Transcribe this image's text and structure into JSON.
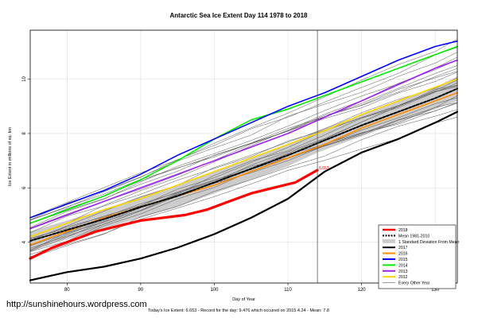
{
  "chart_data": {
    "type": "line",
    "title": "Antarctic Sea Ice Extent Day 114 1978 to 2018",
    "xlabel": "Day of Year",
    "ylabel": "Ice Extent in millions of sq. km",
    "xlim": [
      75,
      133
    ],
    "ylim": [
      2.5,
      11.8
    ],
    "xticks": [
      80,
      90,
      100,
      110,
      120,
      130
    ],
    "yticks": [
      4,
      6,
      8,
      10
    ],
    "grid": true,
    "current_day": 114,
    "current_value_label": "6.653",
    "band": {
      "name": "1 Standard Deviation From Mean",
      "x": [
        75,
        80,
        85,
        90,
        95,
        100,
        105,
        110,
        114,
        120,
        125,
        130,
        133
      ],
      "lower": [
        3.7,
        4.1,
        4.5,
        4.9,
        5.3,
        5.8,
        6.3,
        6.8,
        7.3,
        7.9,
        8.4,
        8.9,
        9.2
      ],
      "upper": [
        4.4,
        4.8,
        5.2,
        5.7,
        6.1,
        6.6,
        7.1,
        7.6,
        8.1,
        8.7,
        9.2,
        9.7,
        10.1
      ]
    },
    "series": [
      {
        "name": "2018",
        "color": "#ff0000",
        "width": 3.2,
        "dash": "",
        "x": [
          75,
          78,
          81,
          84,
          87,
          90,
          93,
          96,
          99,
          102,
          105,
          108,
          111,
          114
        ],
        "y": [
          3.4,
          3.8,
          4.1,
          4.4,
          4.6,
          4.8,
          4.9,
          5.0,
          5.2,
          5.5,
          5.8,
          6.0,
          6.2,
          6.653
        ]
      },
      {
        "name": "Mean 1981-2010",
        "color": "#000000",
        "width": 2.0,
        "dash": "3,2",
        "x": [
          75,
          80,
          85,
          90,
          95,
          100,
          105,
          110,
          115,
          120,
          125,
          130,
          133
        ],
        "y": [
          4.05,
          4.45,
          4.85,
          5.3,
          5.7,
          6.2,
          6.7,
          7.2,
          7.75,
          8.3,
          8.8,
          9.3,
          9.65
        ]
      },
      {
        "name": "2017",
        "color": "#000000",
        "width": 2.2,
        "dash": "",
        "x": [
          75,
          80,
          85,
          90,
          95,
          100,
          105,
          110,
          115,
          120,
          125,
          130,
          133
        ],
        "y": [
          2.6,
          2.9,
          3.1,
          3.4,
          3.8,
          4.3,
          4.9,
          5.6,
          6.6,
          7.3,
          7.8,
          8.4,
          8.8
        ]
      },
      {
        "name": "2016",
        "color": "#ff8c00",
        "width": 1.6,
        "dash": "",
        "x": [
          75,
          80,
          85,
          90,
          95,
          100,
          105,
          110,
          115,
          120,
          125,
          130,
          133
        ],
        "y": [
          3.9,
          4.4,
          4.9,
          5.3,
          5.7,
          6.1,
          6.6,
          7.1,
          7.6,
          8.2,
          8.7,
          9.2,
          9.5
        ]
      },
      {
        "name": "2015",
        "color": "#0000ff",
        "width": 1.6,
        "dash": "",
        "x": [
          75,
          80,
          85,
          90,
          95,
          100,
          105,
          110,
          115,
          120,
          125,
          130,
          133
        ],
        "y": [
          4.9,
          5.4,
          5.9,
          6.5,
          7.2,
          7.8,
          8.4,
          9.0,
          9.5,
          10.1,
          10.7,
          11.2,
          11.4
        ]
      },
      {
        "name": "2014",
        "color": "#00ee00",
        "width": 1.6,
        "dash": "",
        "x": [
          75,
          80,
          85,
          90,
          95,
          100,
          105,
          110,
          115,
          120,
          125,
          130,
          133
        ],
        "y": [
          4.7,
          5.2,
          5.7,
          6.3,
          7.0,
          7.8,
          8.5,
          8.9,
          9.4,
          9.9,
          10.4,
          10.9,
          11.2
        ]
      },
      {
        "name": "2013",
        "color": "#a020f0",
        "width": 1.6,
        "dash": "",
        "x": [
          75,
          80,
          85,
          90,
          95,
          100,
          105,
          110,
          115,
          120,
          125,
          130,
          133
        ],
        "y": [
          4.5,
          5.0,
          5.5,
          6.0,
          6.5,
          7.0,
          7.5,
          8.0,
          8.6,
          9.2,
          9.8,
          10.4,
          10.7
        ]
      },
      {
        "name": "2012",
        "color": "#ffd700",
        "width": 1.6,
        "dash": "",
        "x": [
          75,
          80,
          85,
          90,
          95,
          100,
          105,
          110,
          115,
          120,
          125,
          130,
          133
        ],
        "y": [
          4.2,
          4.7,
          5.2,
          5.6,
          6.1,
          6.6,
          7.1,
          7.6,
          8.1,
          8.7,
          9.2,
          9.7,
          10.0
        ]
      }
    ],
    "legend": {
      "position": "bottom-right",
      "entries": [
        {
          "label": "2018",
          "color": "#ff0000",
          "style": "line",
          "width": 2.5
        },
        {
          "label": "Mean 1981-2010",
          "color": "#000000",
          "style": "dash",
          "width": 2
        },
        {
          "label": "1 Standard Deviation From Mean",
          "color": "#cccccc",
          "style": "box",
          "width": 4
        },
        {
          "label": "2017",
          "color": "#000000",
          "style": "line",
          "width": 2
        },
        {
          "label": "2016",
          "color": "#ff8c00",
          "style": "line",
          "width": 2
        },
        {
          "label": "2015",
          "color": "#0000ff",
          "style": "line",
          "width": 2
        },
        {
          "label": "2014",
          "color": "#00ee00",
          "style": "line",
          "width": 2
        },
        {
          "label": "2013",
          "color": "#a020f0",
          "style": "line",
          "width": 2
        },
        {
          "label": "2012",
          "color": "#ffd700",
          "style": "line",
          "width": 2
        },
        {
          "label": "Every Other Year",
          "color": "#555555",
          "style": "line",
          "width": 0.6
        }
      ]
    },
    "background_years": {
      "name": "Every Other Year",
      "color": "#555555"
    }
  },
  "footer": {
    "url": "http://sunshinehours.wordpress.com",
    "stats": "Today's Ice Extent: 6.653  -  Record for the day: 9.476 which occured on 2015.4.24  -  Mean: 7.8"
  }
}
